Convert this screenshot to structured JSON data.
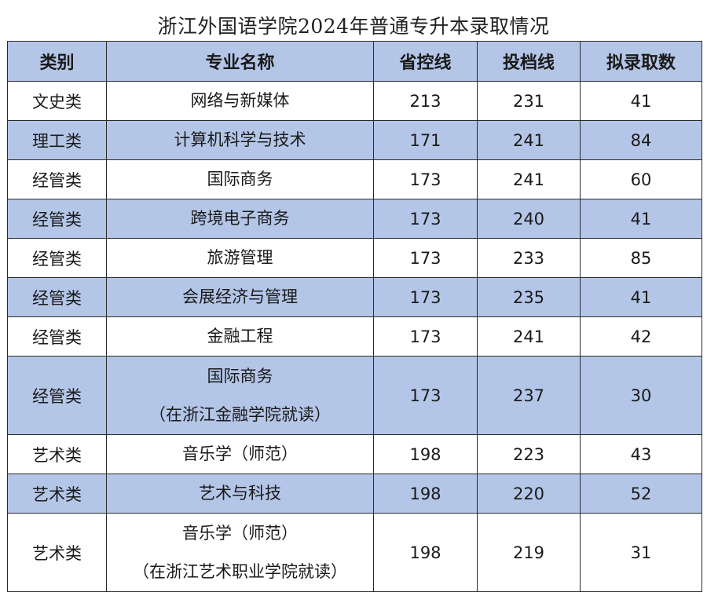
{
  "title": "浙江外国语学院2024年普通专升本录取情况",
  "table": {
    "headers": [
      "类别",
      "专业名称",
      "省控线",
      "投档线",
      "拟录取数"
    ],
    "rows": [
      {
        "category": "文史类",
        "major": [
          "网络与新媒体"
        ],
        "province_line": "213",
        "filing_line": "231",
        "admit_count": "41",
        "shade": "white"
      },
      {
        "category": "理工类",
        "major": [
          "计算机科学与技术"
        ],
        "province_line": "171",
        "filing_line": "241",
        "admit_count": "84",
        "shade": "blue"
      },
      {
        "category": "经管类",
        "major": [
          "国际商务"
        ],
        "province_line": "173",
        "filing_line": "241",
        "admit_count": "60",
        "shade": "white"
      },
      {
        "category": "经管类",
        "major": [
          "跨境电子商务"
        ],
        "province_line": "173",
        "filing_line": "240",
        "admit_count": "41",
        "shade": "blue"
      },
      {
        "category": "经管类",
        "major": [
          "旅游管理"
        ],
        "province_line": "173",
        "filing_line": "233",
        "admit_count": "85",
        "shade": "white"
      },
      {
        "category": "经管类",
        "major": [
          "会展经济与管理"
        ],
        "province_line": "173",
        "filing_line": "235",
        "admit_count": "41",
        "shade": "blue"
      },
      {
        "category": "经管类",
        "major": [
          "金融工程"
        ],
        "province_line": "173",
        "filing_line": "241",
        "admit_count": "42",
        "shade": "white"
      },
      {
        "category": "经管类",
        "major": [
          "国际商务",
          "（在浙江金融学院就读）"
        ],
        "province_line": "173",
        "filing_line": "237",
        "admit_count": "30",
        "shade": "blue"
      },
      {
        "category": "艺术类",
        "major": [
          "音乐学（师范）"
        ],
        "province_line": "198",
        "filing_line": "223",
        "admit_count": "43",
        "shade": "white"
      },
      {
        "category": "艺术类",
        "major": [
          "艺术与科技"
        ],
        "province_line": "198",
        "filing_line": "220",
        "admit_count": "52",
        "shade": "blue"
      },
      {
        "category": "艺术类",
        "major": [
          "音乐学（师范）",
          "（在浙江艺术职业学院就读）"
        ],
        "province_line": "198",
        "filing_line": "219",
        "admit_count": "31",
        "shade": "white"
      }
    ]
  },
  "colors": {
    "header_bg": "#b4c6e7",
    "band_bg": "#b4c6e7",
    "row_bg": "#ffffff",
    "border": "#2a2a2a"
  }
}
